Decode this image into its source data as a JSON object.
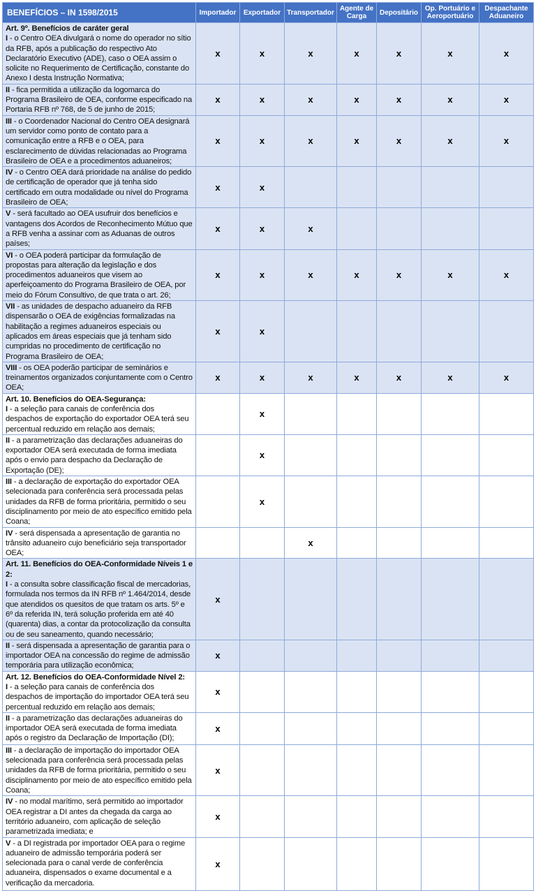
{
  "header": {
    "title": "BENEFÍCIOS – IN 1598/2015",
    "columns": [
      "Importador",
      "Exportador",
      "Transportador",
      "Agente de Carga",
      "Depositário",
      "Op. Portuário e Aeroportuário",
      "Despachante Aduaneiro"
    ]
  },
  "colors": {
    "header_bg": "#4472c4",
    "shaded_row": "#dae3f3",
    "border": "#8eaadb"
  },
  "rows": [
    {
      "shade": "blue",
      "heading": "Art. 9º. Benefícios de caráter geral",
      "prefix": "I",
      "text": " - o Centro OEA divulgará o nome do operador no sítio da RFB, após a publicação do respectivo Ato Declaratório Executivo (ADE), caso o OEA assim o solicite no Requerimento de Certificação, constante do Anexo I desta Instrução Normativa;",
      "marks": [
        "x",
        "x",
        "x",
        "x",
        "x",
        "x",
        "x"
      ]
    },
    {
      "shade": "blue",
      "prefix": "II",
      "text": " - fica permitida a utilização da logomarca do Programa Brasileiro de OEA, conforme especificado na Portaria RFB nº 768, de 5 de junho de 2015;",
      "marks": [
        "x",
        "x",
        "x",
        "x",
        "x",
        "x",
        "x"
      ]
    },
    {
      "shade": "blue",
      "prefix": "III",
      "text": " - o Coordenador Nacional do Centro OEA designará um servidor como ponto de contato para a comunicação entre a RFB e o OEA, para esclarecimento de dúvidas relacionadas ao Programa Brasileiro de OEA e a procedimentos aduaneiros;",
      "marks": [
        "x",
        "x",
        "x",
        "x",
        "x",
        "x",
        "x"
      ]
    },
    {
      "shade": "blue",
      "prefix": "IV",
      "text": " - o Centro OEA dará prioridade na análise do pedido de certificação de operador que já tenha sido certificado em outra modalidade ou nível do Programa Brasileiro de OEA;",
      "marks": [
        "x",
        "x",
        "",
        "",
        "",
        "",
        ""
      ]
    },
    {
      "shade": "blue",
      "prefix": "V",
      "text": " - será facultado ao OEA usufruir dos benefícios e vantagens dos Acordos de Reconhecimento Mútuo que a RFB venha a assinar com as Aduanas de outros países;",
      "marks": [
        "x",
        "x",
        "x",
        "",
        "",
        "",
        ""
      ]
    },
    {
      "shade": "blue",
      "prefix": "VI",
      "text": " - o OEA poderá participar da formulação de propostas para alteração da legislação e dos procedimentos aduaneiros que visem ao aperfeiçoamento do Programa Brasileiro de OEA, por meio do Fórum Consultivo, de que trata o art. 26;",
      "marks": [
        "x",
        "x",
        "x",
        "x",
        "x",
        "x",
        "x"
      ]
    },
    {
      "shade": "blue",
      "prefix": "VII",
      "text": " - as unidades de despacho aduaneiro da RFB dispensarão o OEA de exigências formalizadas na habilitação a regimes aduaneiros especiais ou aplicados em áreas especiais que já tenham sido cumpridas no procedimento de certificação no Programa Brasileiro de OEA;",
      "marks": [
        "x",
        "x",
        "",
        "",
        "",
        "",
        ""
      ]
    },
    {
      "shade": "blue",
      "prefix": "VIII",
      "text": " - os OEA poderão participar de seminários e treinamentos organizados conjuntamente com o Centro OEA;",
      "marks": [
        "x",
        "x",
        "x",
        "x",
        "x",
        "x",
        "x"
      ]
    },
    {
      "shade": "white",
      "heading": "Art. 10. Benefícios do OEA-Segurança:",
      "prefix": "I",
      "text": " - a seleção para canais de conferência dos despachos de exportação do exportador OEA terá seu percentual reduzido em relação aos demais;",
      "marks": [
        "",
        "x",
        "",
        "",
        "",
        "",
        ""
      ]
    },
    {
      "shade": "white",
      "prefix": "II",
      "text": " - a parametrização das declarações aduaneiras do exportador OEA será executada de forma imediata após o envio para despacho da Declaração de Exportação (DE);",
      "marks": [
        "",
        "x",
        "",
        "",
        "",
        "",
        ""
      ]
    },
    {
      "shade": "white",
      "prefix": "III",
      "text": " - a declaração de exportação do exportador OEA selecionada para conferência será processada pelas unidades da RFB de forma prioritária, permitido o seu disciplinamento por meio de ato específico emitido pela Coana;",
      "marks": [
        "",
        "x",
        "",
        "",
        "",
        "",
        ""
      ]
    },
    {
      "shade": "white",
      "prefix": "IV",
      "text": " - será dispensada a apresentação de garantia no trânsito aduaneiro cujo beneficiário seja transportador OEA;",
      "marks": [
        "",
        "",
        "x",
        "",
        "",
        "",
        ""
      ]
    },
    {
      "shade": "blue",
      "heading": "Art. 11. Benefícios do OEA-Conformidade Níveis 1 e 2:",
      "prefix": "I",
      "text": " - a consulta sobre classificação fiscal de mercadorias, formulada nos termos da IN RFB nº 1.464/2014, desde que atendidos os quesitos de que tratam os arts. 5º e 6º da referida IN, terá solução proferida em até 40 (quarenta) dias, a contar da protocolização da consulta ou de seu saneamento, quando necessário;",
      "marks": [
        "x",
        "",
        "",
        "",
        "",
        "",
        ""
      ]
    },
    {
      "shade": "blue",
      "prefix": "II",
      "text": " - será dispensada a apresentação de garantia para o importador OEA na concessão do regime de admissão temporária para utilização econômica;",
      "marks": [
        "x",
        "",
        "",
        "",
        "",
        "",
        ""
      ]
    },
    {
      "shade": "white",
      "heading": "Art. 12. Benefícios do OEA-Conformidade Nível 2:",
      "prefix": "I",
      "text": " - a seleção para canais de conferência dos despachos de importação do importador OEA terá seu percentual reduzido em relação aos demais;",
      "marks": [
        "x",
        "",
        "",
        "",
        "",
        "",
        ""
      ]
    },
    {
      "shade": "white",
      "prefix": "II",
      "text": " - a parametrização das declarações aduaneiras do importador OEA será executada de forma imediata após o registro da Declaração de Importação (DI);",
      "marks": [
        "x",
        "",
        "",
        "",
        "",
        "",
        ""
      ]
    },
    {
      "shade": "white",
      "prefix": "III",
      "text": " - a declaração de importação do importador OEA selecionada para conferência será processada pelas unidades da RFB de forma prioritária, permitido o seu disciplinamento por meio de ato específico emitido pela Coana;",
      "marks": [
        "x",
        "",
        "",
        "",
        "",
        "",
        ""
      ]
    },
    {
      "shade": "white",
      "prefix": "IV",
      "text": " - no modal marítimo, será permitido ao importador OEA registrar a DI antes da chegada da carga ao território aduaneiro, com aplicação de seleção parametrizada imediata; e",
      "marks": [
        "x",
        "",
        "",
        "",
        "",
        "",
        ""
      ]
    },
    {
      "shade": "white",
      "prefix": "V",
      "text": " - a DI registrada por importador OEA para o regime aduaneiro de admissão temporária poderá ser selecionada para o canal verde de conferência aduaneira, dispensados o exame documental e a verificação da mercadoria.",
      "marks": [
        "x",
        "",
        "",
        "",
        "",
        "",
        ""
      ]
    }
  ]
}
